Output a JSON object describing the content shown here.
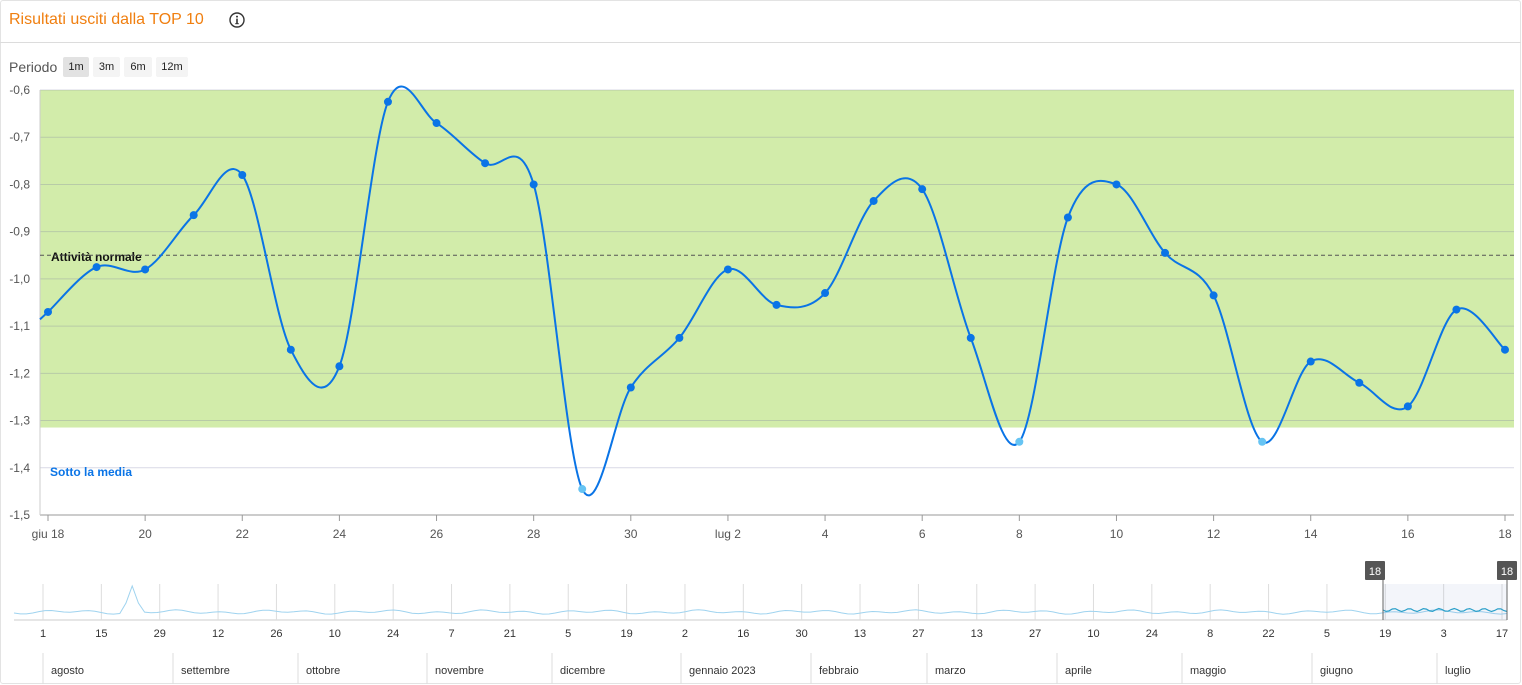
{
  "header": {
    "title": "Risultati usciti dalla TOP 10",
    "info_icon": "info-icon"
  },
  "period": {
    "label": "Periodo",
    "options": [
      "1m",
      "3m",
      "6m",
      "12m"
    ],
    "selected": "1m"
  },
  "chart_data": {
    "type": "line",
    "x": [
      "2023-06-18",
      "2023-06-19",
      "2023-06-20",
      "2023-06-21",
      "2023-06-22",
      "2023-06-23",
      "2023-06-24",
      "2023-06-25",
      "2023-06-26",
      "2023-06-27",
      "2023-06-28",
      "2023-06-29",
      "2023-06-30",
      "2023-07-01",
      "2023-07-02",
      "2023-07-03",
      "2023-07-04",
      "2023-07-05",
      "2023-07-06",
      "2023-07-07",
      "2023-07-08",
      "2023-07-09",
      "2023-07-10",
      "2023-07-11",
      "2023-07-12",
      "2023-07-13",
      "2023-07-14",
      "2023-07-15",
      "2023-07-16",
      "2023-07-17",
      "2023-07-18"
    ],
    "series": [
      {
        "values": [
          -1.07,
          -0.975,
          -0.98,
          -0.865,
          -0.78,
          -1.15,
          -1.185,
          -0.625,
          -0.67,
          -0.755,
          -0.8,
          -1.445,
          -1.23,
          -1.125,
          -0.98,
          -1.055,
          -1.03,
          -0.835,
          -0.81,
          -1.125,
          -1.345,
          -0.87,
          -0.8,
          -0.945,
          -1.035,
          -1.345,
          -1.175,
          -1.22,
          -1.27,
          -1.065,
          -1.15
        ],
        "color": "#0a74e6"
      }
    ],
    "below_average_point_color": "#67c4f3",
    "ylim": [
      -1.5,
      -0.6
    ],
    "yticks": [
      "-0,6",
      "-0,7",
      "-0,8",
      "-0,9",
      "-1,0",
      "-1,1",
      "-1,2",
      "-1,3",
      "-1,4",
      "-1,5"
    ],
    "xtick_labels": [
      "giu 18",
      "20",
      "22",
      "24",
      "26",
      "28",
      "30",
      "lug 2",
      "4",
      "6",
      "8",
      "10",
      "12",
      "14",
      "16",
      "18"
    ],
    "bands": [
      {
        "label": "Attività normale",
        "from": -1.315,
        "to": -0.6,
        "color": "#d2ecaa",
        "label_color": "#111111"
      },
      {
        "label": "Sotto la media",
        "from": -1.5,
        "to": -1.315,
        "color": "#ffffff",
        "label_color": "#0a74e6"
      }
    ],
    "reference_line": -0.95,
    "grid": true
  },
  "navigator": {
    "day_ticks": [
      "1",
      "15",
      "29",
      "12",
      "26",
      "10",
      "24",
      "7",
      "21",
      "5",
      "19",
      "2",
      "16",
      "30",
      "13",
      "27",
      "13",
      "27",
      "10",
      "24",
      "8",
      "22",
      "5",
      "19",
      "3",
      "17"
    ],
    "months": [
      "agosto",
      "settembre",
      "ottobre",
      "novembre",
      "dicembre",
      "gennaio 2023",
      "febbraio",
      "marzo",
      "aprile",
      "maggio",
      "giugno",
      "luglio"
    ],
    "handle_labels": [
      "18",
      "18"
    ],
    "line_color": "#9fd3ef",
    "selected_color": "#2a9fc9"
  }
}
